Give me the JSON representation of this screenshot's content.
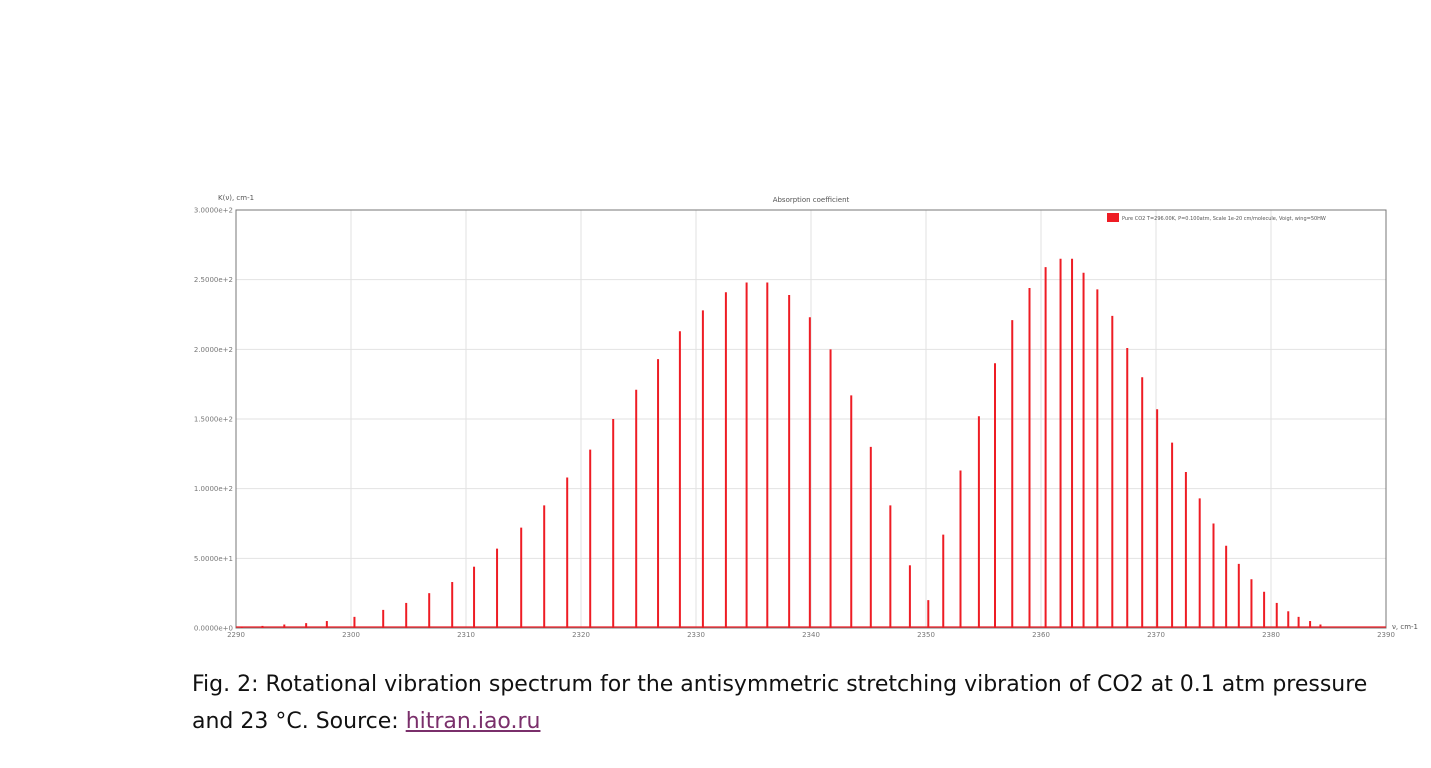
{
  "chart_data": {
    "type": "line",
    "title": "Absorption coefficient",
    "ylabel": "K(ν), cm-1",
    "xlabel": "ν, cm-1",
    "xlim": [
      2290,
      2390
    ],
    "ylim": [
      0,
      300
    ],
    "x_ticks": [
      "2290",
      "2300",
      "2310",
      "2320",
      "2330",
      "2340",
      "2350",
      "2360",
      "2370",
      "2380",
      "2390"
    ],
    "y_ticks": [
      "0.0000e+0",
      "5.0000e+1",
      "1.0000e+2",
      "1.5000e+2",
      "2.0000e+2",
      "2.5000e+2",
      "3.0000e+2"
    ],
    "grid": true,
    "legend_position": "top-right",
    "series": [
      {
        "name": "Pure CO2 T=296.00K, P=0.100atm, Scale 1e-20 cm/molecule, Voigt, wing=50HW",
        "color": "#ee1c24",
        "x": [
          2290.5,
          2292.3,
          2294.2,
          2296.1,
          2297.9,
          2300.3,
          2302.8,
          2304.8,
          2306.8,
          2308.8,
          2310.7,
          2312.7,
          2314.8,
          2316.8,
          2318.8,
          2320.8,
          2322.8,
          2324.8,
          2326.7,
          2328.6,
          2330.6,
          2332.6,
          2334.4,
          2336.2,
          2338.1,
          2339.9,
          2341.7,
          2343.5,
          2345.2,
          2346.9,
          2348.6,
          2350.2,
          2351.5,
          2353.0,
          2354.6,
          2356.0,
          2357.5,
          2359.0,
          2360.4,
          2361.7,
          2362.7,
          2363.7,
          2364.9,
          2366.2,
          2367.5,
          2368.8,
          2370.1,
          2371.4,
          2372.6,
          2373.8,
          2375.0,
          2376.1,
          2377.2,
          2378.3,
          2379.4,
          2380.5,
          2381.5,
          2382.4,
          2383.4,
          2384.3
        ],
        "y": [
          1,
          1.5,
          2.5,
          3.5,
          5,
          8,
          13,
          18,
          25,
          33,
          44,
          57,
          72,
          88,
          108,
          128,
          150,
          171,
          193,
          213,
          228,
          241,
          248,
          248,
          239,
          223,
          200,
          167,
          130,
          88,
          45,
          20,
          67,
          113,
          152,
          190,
          221,
          244,
          259,
          265,
          265,
          255,
          243,
          224,
          201,
          180,
          157,
          133,
          112,
          93,
          75,
          59,
          46,
          35,
          26,
          18,
          12,
          8,
          5,
          2.5
        ]
      }
    ],
    "caption_text": "Fig. 2: Rotational vibration spectrum for the antisymmetric stretching vibration of CO2 at 0.1 atm pressure and 23 °C. Source: ",
    "caption_link": "hitran.iao.ru"
  }
}
